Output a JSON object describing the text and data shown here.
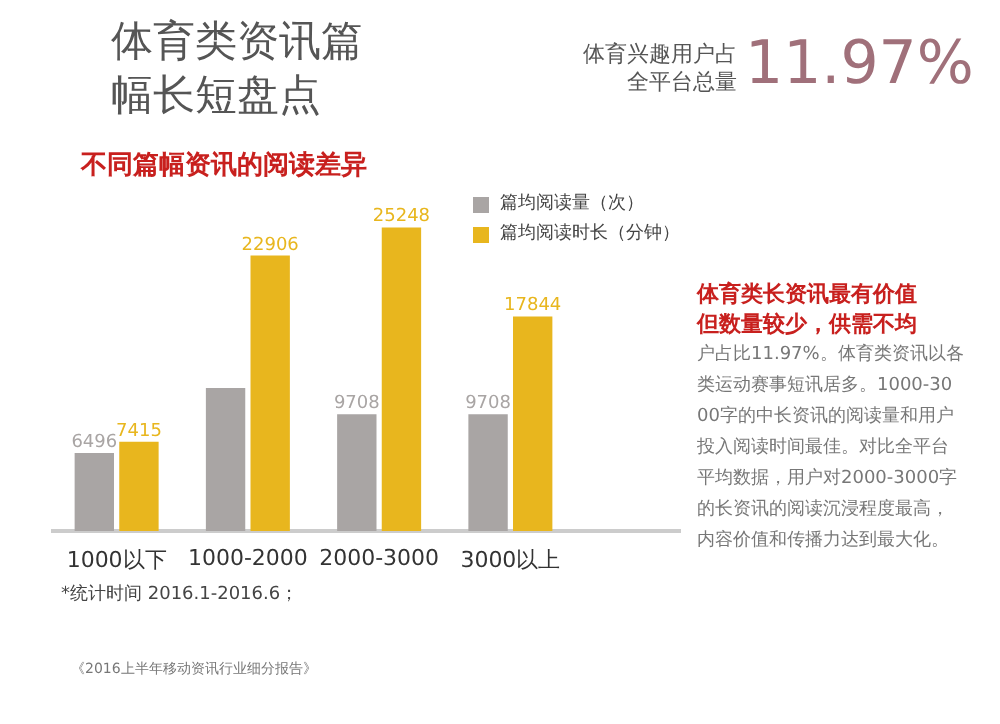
{
  "chart_data": {
    "type": "bar",
    "title": "体育类资讯篇幅长短盘点",
    "subtitle": "不同篇幅资讯的阅读差异",
    "categories": [
      "1000以下",
      "1000-2000",
      "2000-3000",
      "3000以上"
    ],
    "series": [
      {
        "name": "篇均阅读量（次）",
        "color": "#a9a5a4",
        "values": [
          6496,
          11900,
          9708,
          9708
        ],
        "value_labels": [
          "6496",
          null,
          "9708",
          "9708"
        ]
      },
      {
        "name": "篇均阅读时长（分钟）",
        "color": "#e8b61e",
        "values": [
          7415,
          22906,
          25248,
          17844
        ],
        "value_labels": [
          "7415",
          "22906",
          "25248",
          "17844"
        ]
      }
    ],
    "legend": "top right",
    "annotations": [
      "体育兴趣用户占全平台总量",
      "11.97%",
      "体育类长资讯最有价值但数量较少，供需不均",
      "户占比11.97%。体育类资讯以各类运动赛事短讯居多。1000-3000字的中长资讯的阅读量和用户投入阅读时间最佳。对比全平台平均数据，用户对2000-3000字的长资讯的阅读沉浸程度最高，内容价值和传播力达到最大化。",
      "*统计时间 2016.1-2016.6；",
      "《2016上半年移动资讯行业细分报告》"
    ]
  }
}
